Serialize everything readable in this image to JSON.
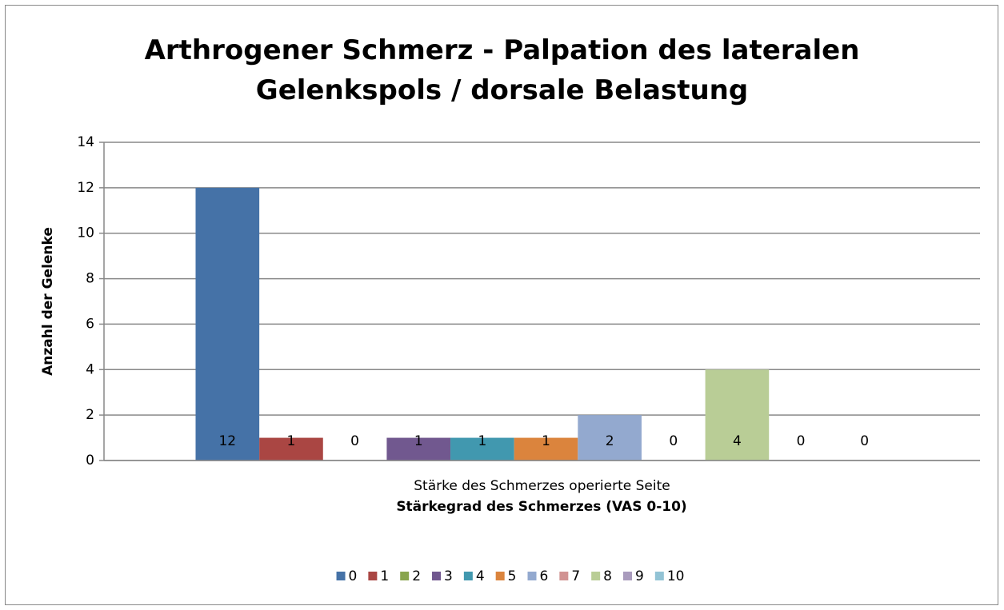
{
  "chart_data": {
    "type": "bar",
    "title": "Arthrogener Schmerz - Palpation des lateralen Gelenkspols / dorsale Belastung",
    "x_label": "Stärkegrad des Schmerzes (VAS 0-10)",
    "y_label": "Anzahl der Gelenke",
    "categories": [
      "Stärke des Schmerzes operierte Seite"
    ],
    "series": [
      {
        "name": "0",
        "color": "#4572a7",
        "values": [
          12
        ]
      },
      {
        "name": "1",
        "color": "#aa4643",
        "values": [
          1
        ]
      },
      {
        "name": "2",
        "color": "#89a54e",
        "values": [
          0
        ]
      },
      {
        "name": "3",
        "color": "#71588f",
        "values": [
          1
        ]
      },
      {
        "name": "4",
        "color": "#4198af",
        "values": [
          1
        ]
      },
      {
        "name": "5",
        "color": "#db843d",
        "values": [
          1
        ]
      },
      {
        "name": "6",
        "color": "#93a9cf",
        "values": [
          2
        ]
      },
      {
        "name": "7",
        "color": "#d19392",
        "values": [
          0
        ]
      },
      {
        "name": "8",
        "color": "#b9cd96",
        "values": [
          4
        ]
      },
      {
        "name": "9",
        "color": "#a99bbd",
        "values": [
          0
        ]
      },
      {
        "name": "10",
        "color": "#92c3d5",
        "values": [
          0
        ]
      }
    ],
    "ylim": [
      0,
      14
    ],
    "yticks": [
      0,
      2,
      4,
      6,
      8,
      10,
      12,
      14
    ],
    "grid": true,
    "legend": "bottom"
  }
}
